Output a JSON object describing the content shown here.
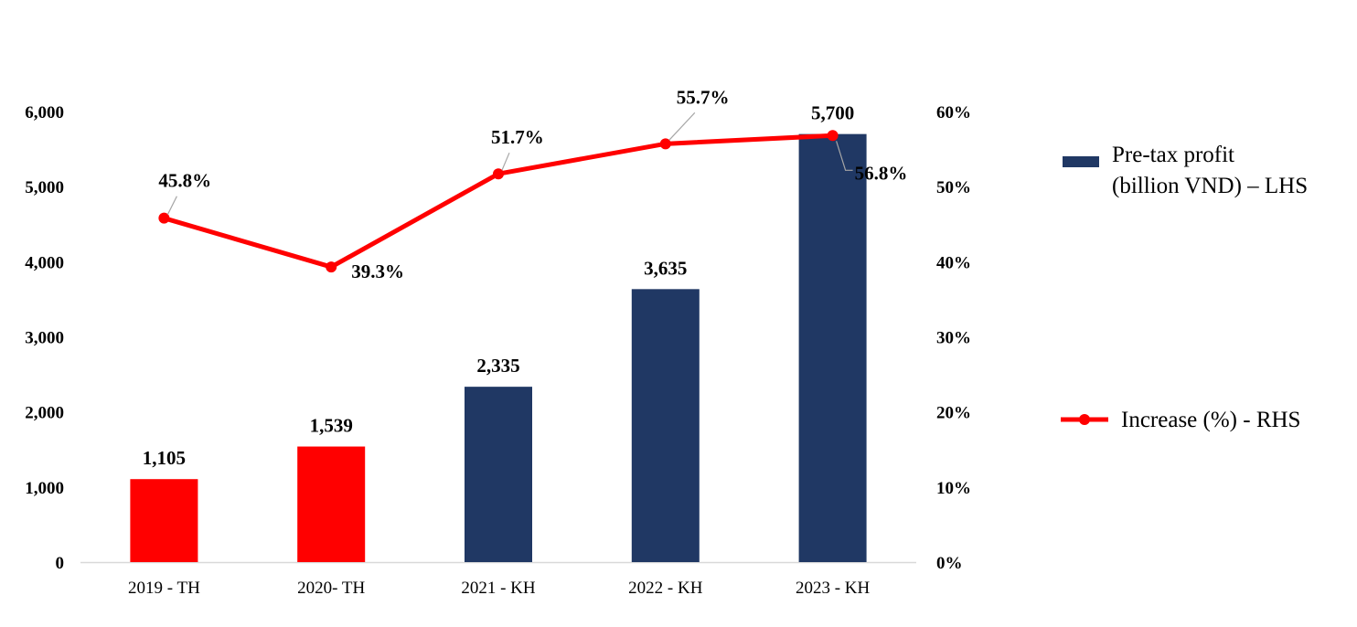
{
  "chart_data": {
    "type": "bar",
    "categories": [
      "2019 - TH",
      "2020- TH",
      "2021 - KH",
      "2022 - KH",
      "2023 - KH"
    ],
    "series": [
      {
        "name": "Pre-tax profit (billion VND) – LHS",
        "kind": "bar",
        "axis": "left",
        "values": [
          1105,
          1539,
          2335,
          3635,
          5700
        ],
        "labels": [
          "1,105",
          "1,539",
          "2,335",
          "3,635",
          "5,700"
        ],
        "colors": [
          "#ff0000",
          "#ff0000",
          "#203864",
          "#203864",
          "#203864"
        ]
      },
      {
        "name": "Increase (%) - RHS",
        "kind": "line",
        "axis": "right",
        "values": [
          45.8,
          39.3,
          51.7,
          55.7,
          56.8
        ],
        "labels": [
          "45.8%",
          "39.3%",
          "51.7%",
          "55.7%",
          "56.8%"
        ],
        "color": "#ff0000"
      }
    ],
    "left_axis": {
      "ylim": [
        0,
        6000
      ],
      "ticks": [
        0,
        1000,
        2000,
        3000,
        4000,
        5000,
        6000
      ],
      "tick_labels": [
        "0",
        "1,000",
        "2,000",
        "3,000",
        "4,000",
        "5,000",
        "6,000"
      ]
    },
    "right_axis": {
      "ylim": [
        0,
        60
      ],
      "ticks": [
        0,
        10,
        20,
        30,
        40,
        50,
        60
      ],
      "tick_labels": [
        "0%",
        "10%",
        "20%",
        "30%",
        "40%",
        "50%",
        "60%"
      ]
    },
    "legend": {
      "placement": "right",
      "items": [
        {
          "lines": [
            "Pre-tax profit",
            "(billion VND) – LHS"
          ],
          "kind": "bar",
          "color": "#203864"
        },
        {
          "lines": [
            "Increase (%) - RHS"
          ],
          "kind": "line",
          "color": "#ff0000"
        }
      ]
    },
    "grid": false
  }
}
